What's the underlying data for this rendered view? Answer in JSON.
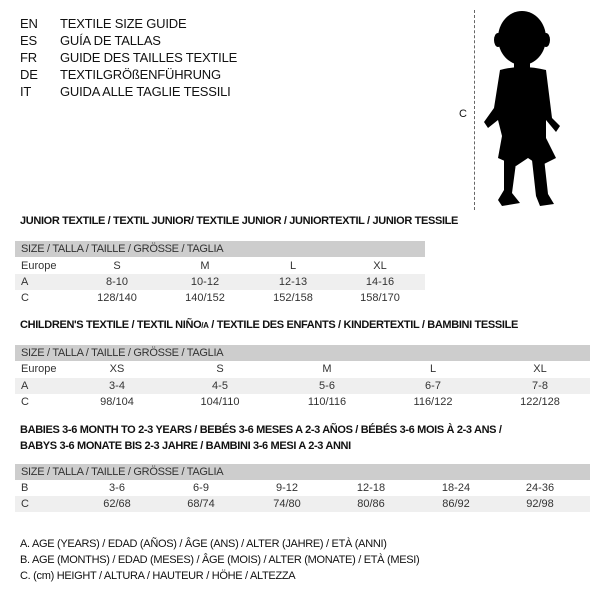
{
  "languages": [
    {
      "code": "EN",
      "text": "TEXTILE SIZE GUIDE"
    },
    {
      "code": "ES",
      "text": "GUÍA DE TALLAS"
    },
    {
      "code": "FR",
      "text": "GUIDE DES TAILLES TEXTILE"
    },
    {
      "code": "DE",
      "text": "TEXTILGRÖßENFÜHRUNG"
    },
    {
      "code": "IT",
      "text": "GUIDA ALLE TAGLIE TESSILI"
    }
  ],
  "figure": {
    "height_label": "C"
  },
  "size_header": "SIZE / TALLA / TAILLE / GRÖSSE / TAGLIA",
  "junior": {
    "title": "JUNIOR TEXTILE / TEXTIL JUNIOR/ TEXTILE JUNIOR / JUNIORTEXTIL / JUNIOR TESSILE",
    "rows": [
      {
        "label": "Europe",
        "values": [
          "S",
          "M",
          "L",
          "XL"
        ]
      },
      {
        "label": "A",
        "values": [
          "8-10",
          "10-12",
          "12-13",
          "14-16"
        ]
      },
      {
        "label": "C",
        "values": [
          "128/140",
          "140/152",
          "152/158",
          "158/170"
        ]
      }
    ]
  },
  "children": {
    "title": "CHILDREN'S TEXTILE / TEXTIL NIÑO/A / TEXTILE DES ENFANTS / KINDERTEXTIL / BAMBINI TESSILE",
    "rows": [
      {
        "label": "Europe",
        "values": [
          "XS",
          "S",
          "M",
          "L",
          "XL"
        ]
      },
      {
        "label": "A",
        "values": [
          "3-4",
          "4-5",
          "5-6",
          "6-7",
          "7-8"
        ]
      },
      {
        "label": "C",
        "values": [
          "98/104",
          "104/110",
          "110/116",
          "116/122",
          "122/128"
        ]
      }
    ]
  },
  "babies": {
    "title_line1": "BABIES 3-6 MONTH TO 2-3 YEARS / BEBÉS 3-6 MESES A 2-3 AÑOS / BÉBÉS 3-6 MOIS À 2-3 ANS /",
    "title_line2": "BABYS 3-6 MONATE BIS 2-3 JAHRE / BAMBINI 3-6 MESI A 2-3 ANNI",
    "rows": [
      {
        "label": "B",
        "values": [
          "3-6",
          "6-9",
          "9-12",
          "12-18",
          "18-24",
          "24-36"
        ]
      },
      {
        "label": "C",
        "values": [
          "62/68",
          "68/74",
          "74/80",
          "80/86",
          "86/92",
          "92/98"
        ]
      }
    ]
  },
  "legend": [
    "A. AGE (YEARS) / EDAD (AÑOS) / ÂGE (ANS) / ALTER (JAHRE) / ETÀ (ANNI)",
    "B. AGE (MONTHS) / EDAD (MESES) / ÂGE (MOIS) / ALTER (MONATE) / ETÀ (MESI)",
    "C. (cm) HEIGHT / ALTURA / HAUTEUR / HÖHE / ALTEZZA"
  ]
}
